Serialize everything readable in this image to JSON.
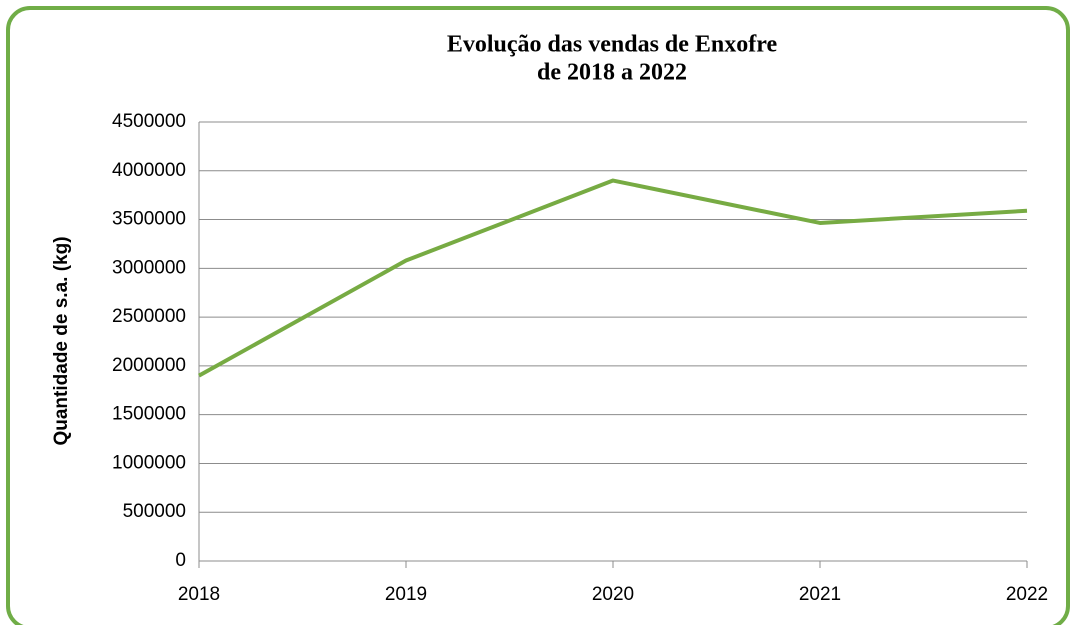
{
  "chart_data": {
    "type": "line",
    "title": [
      "Evolução das vendas de Enxofre",
      "de 2018 a 2022"
    ],
    "y_label": "Quantidade de s.a. (kg)",
    "x": [
      2018,
      2019,
      2020,
      2021,
      2022
    ],
    "xlim": [
      2018,
      2022
    ],
    "xticks": [
      2018,
      2019,
      2020,
      2021,
      2022
    ],
    "series": [
      {
        "name": "Enxofre",
        "color": "#77ab43",
        "values": [
          1900000,
          3080000,
          3900000,
          3465000,
          3590000
        ]
      }
    ],
    "ylim": [
      0,
      4500000
    ],
    "yticks": [
      0,
      500000,
      1000000,
      1500000,
      2000000,
      2500000,
      3000000,
      3500000,
      4000000,
      4500000
    ],
    "grid": true
  }
}
